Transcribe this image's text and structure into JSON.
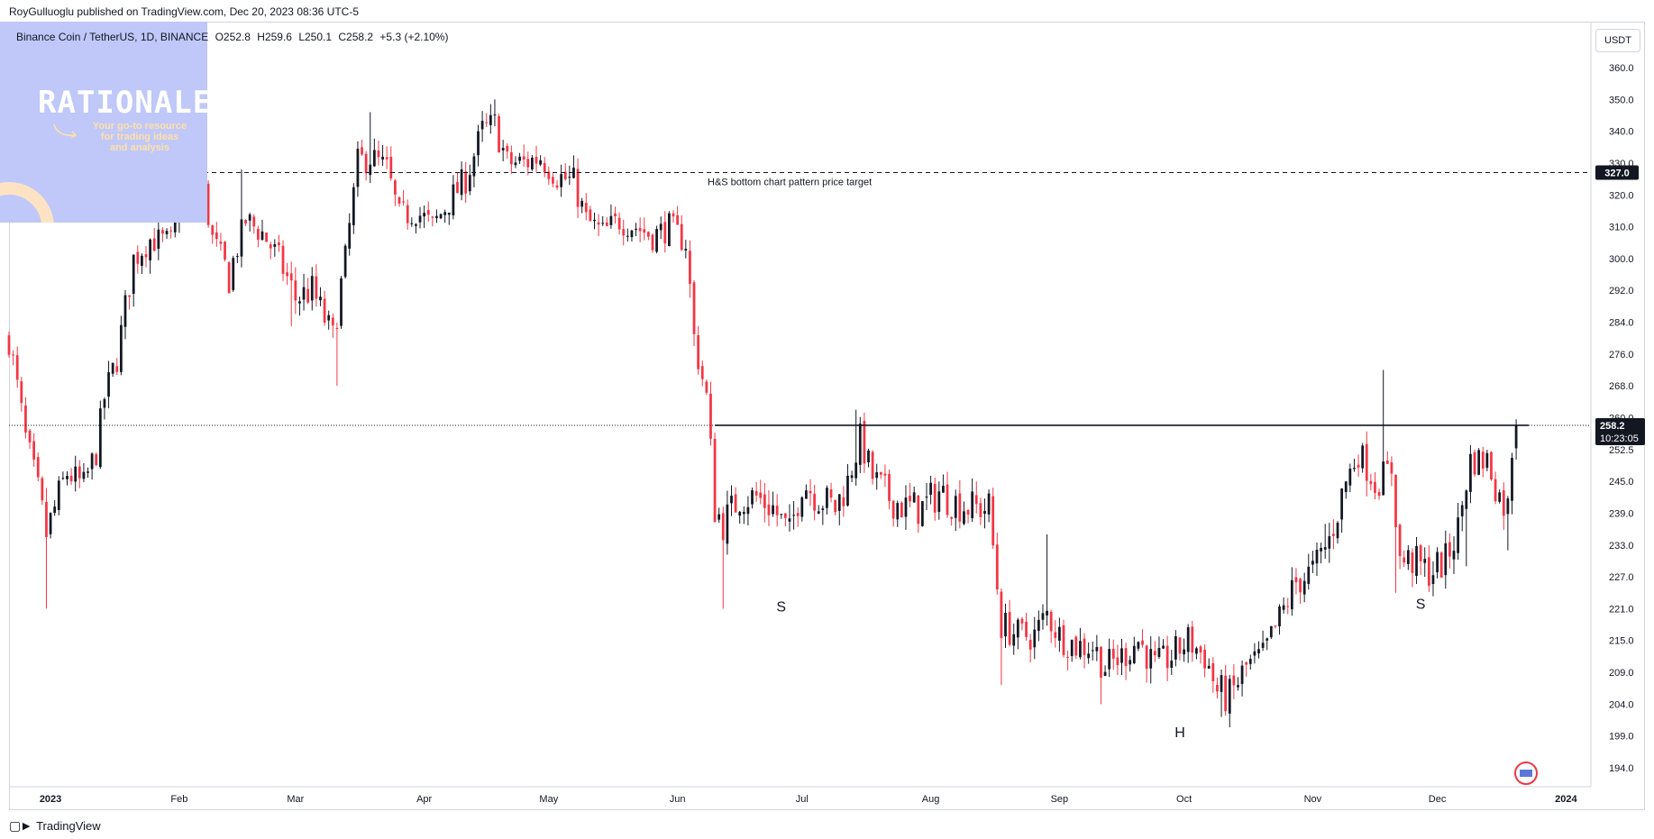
{
  "header": {
    "publisher": "RoyGulluoglu published on TradingView.com, Dec 20, 2023 08:36 UTC-5"
  },
  "symbol": {
    "name": "Binance Coin / TetherUS, 1D, BINANCE",
    "open": "O252.8",
    "high": "H259.6",
    "low": "L250.1",
    "close": "C258.2",
    "change": "+5.3 (+2.10%)"
  },
  "watermark": {
    "title": "RATIONALE",
    "tagline_1": "Your go-to resource",
    "tagline_2": "for trading ideas",
    "tagline_3": "and analysis"
  },
  "currency_button": "USDT",
  "footer": {
    "brand": "TradingView"
  },
  "colors": {
    "up": "#131722",
    "down": "#f23645",
    "target_line": "#131722",
    "neckline": "#131722"
  },
  "chart_data": {
    "type": "candlestick",
    "symbol": "BNBUSDT",
    "interval": "1D",
    "x_ticks": [
      "2023",
      "Feb",
      "Mar",
      "Apr",
      "May",
      "Jun",
      "Jul",
      "Aug",
      "Sep",
      "Oct",
      "Nov",
      "Dec",
      "2024"
    ],
    "y_ticks": [
      194.0,
      199.0,
      204.0,
      209.0,
      215.0,
      221.0,
      227.0,
      233.0,
      239.0,
      245.0,
      252.5,
      260.0,
      268.0,
      276.0,
      284.0,
      292.0,
      300.0,
      310.0,
      320.0,
      330.0,
      340.0,
      350.0,
      360.0
    ],
    "y_range": [
      190,
      366
    ],
    "x_range": [
      "2022-12-22",
      "2024-01-07"
    ],
    "last_price": {
      "value": 258.2,
      "label": "258.2",
      "countdown": "10:23:05"
    },
    "target": {
      "value": 327.0,
      "label": "327.0",
      "text": "H&S bottom chart pattern price target"
    },
    "neckline": {
      "value": 258.2,
      "from": "2023-06-10",
      "to": "2023-12-23"
    },
    "pattern_labels": [
      {
        "text": "S",
        "date": "2023-06-26",
        "price": 220.5
      },
      {
        "text": "H",
        "date": "2023-09-30",
        "price": 198.8
      },
      {
        "text": "S",
        "date": "2023-11-27",
        "price": 221.0
      }
    ],
    "anchors": [
      [
        "2022-12-22",
        280
      ],
      [
        "2022-12-26",
        255
      ],
      [
        "2022-12-31",
        235
      ],
      [
        "2023-01-05",
        247
      ],
      [
        "2023-01-09",
        244
      ],
      [
        "2023-01-12",
        252
      ],
      [
        "2023-01-14",
        265
      ],
      [
        "2023-01-17",
        275
      ],
      [
        "2023-01-21",
        300
      ],
      [
        "2023-01-25",
        306
      ],
      [
        "2023-01-30",
        305
      ],
      [
        "2023-02-02",
        320
      ],
      [
        "2023-02-06",
        328
      ],
      [
        "2023-02-09",
        306
      ],
      [
        "2023-02-13",
        295
      ],
      [
        "2023-02-17",
        312
      ],
      [
        "2023-02-21",
        308
      ],
      [
        "2023-02-25",
        300
      ],
      [
        "2023-03-01",
        290
      ],
      [
        "2023-03-05",
        292
      ],
      [
        "2023-03-10",
        280
      ],
      [
        "2023-03-13",
        300
      ],
      [
        "2023-03-16",
        330
      ],
      [
        "2023-03-19",
        332
      ],
      [
        "2023-03-23",
        328
      ],
      [
        "2023-03-26",
        313
      ],
      [
        "2023-03-30",
        315
      ],
      [
        "2023-04-03",
        310
      ],
      [
        "2023-04-07",
        318
      ],
      [
        "2023-04-11",
        325
      ],
      [
        "2023-04-15",
        340
      ],
      [
        "2023-04-18",
        342
      ],
      [
        "2023-04-21",
        330
      ],
      [
        "2023-04-25",
        330
      ],
      [
        "2023-04-29",
        332
      ],
      [
        "2023-05-03",
        326
      ],
      [
        "2023-05-07",
        324
      ],
      [
        "2023-05-10",
        312
      ],
      [
        "2023-05-14",
        308
      ],
      [
        "2023-05-18",
        312
      ],
      [
        "2023-05-22",
        310
      ],
      [
        "2023-05-26",
        307
      ],
      [
        "2023-05-30",
        310
      ],
      [
        "2023-06-03",
        305
      ],
      [
        "2023-06-05",
        280
      ],
      [
        "2023-06-08",
        265
      ],
      [
        "2023-06-10",
        240
      ],
      [
        "2023-06-12",
        237
      ],
      [
        "2023-06-16",
        242
      ],
      [
        "2023-06-20",
        242
      ],
      [
        "2023-06-24",
        240
      ],
      [
        "2023-06-28",
        235
      ],
      [
        "2023-07-01",
        245
      ],
      [
        "2023-07-05",
        242
      ],
      [
        "2023-07-09",
        240
      ],
      [
        "2023-07-12",
        245
      ],
      [
        "2023-07-15",
        255
      ],
      [
        "2023-07-18",
        246
      ],
      [
        "2023-07-22",
        242
      ],
      [
        "2023-07-26",
        240
      ],
      [
        "2023-07-30",
        240
      ],
      [
        "2023-08-03",
        243
      ],
      [
        "2023-08-07",
        241
      ],
      [
        "2023-08-11",
        240
      ],
      [
        "2023-08-15",
        240
      ],
      [
        "2023-08-18",
        218
      ],
      [
        "2023-08-22",
        216
      ],
      [
        "2023-08-26",
        216
      ],
      [
        "2023-08-29",
        220
      ],
      [
        "2023-09-01",
        216
      ],
      [
        "2023-09-05",
        214
      ],
      [
        "2023-09-09",
        214
      ],
      [
        "2023-09-12",
        210
      ],
      [
        "2023-09-16",
        212
      ],
      [
        "2023-09-20",
        215
      ],
      [
        "2023-09-24",
        210
      ],
      [
        "2023-09-28",
        212
      ],
      [
        "2023-10-02",
        215
      ],
      [
        "2023-10-06",
        212
      ],
      [
        "2023-10-09",
        206
      ],
      [
        "2023-10-12",
        205
      ],
      [
        "2023-10-16",
        210
      ],
      [
        "2023-10-20",
        212
      ],
      [
        "2023-10-24",
        219
      ],
      [
        "2023-10-28",
        226
      ],
      [
        "2023-11-01",
        228
      ],
      [
        "2023-11-05",
        234
      ],
      [
        "2023-11-09",
        245
      ],
      [
        "2023-11-12",
        252
      ],
      [
        "2023-11-16",
        245
      ],
      [
        "2023-11-20",
        248
      ],
      [
        "2023-11-22",
        230
      ],
      [
        "2023-11-25",
        230
      ],
      [
        "2023-11-29",
        228
      ],
      [
        "2023-12-03",
        230
      ],
      [
        "2023-12-06",
        236
      ],
      [
        "2023-12-09",
        250
      ],
      [
        "2023-12-13",
        250
      ],
      [
        "2023-12-16",
        242
      ],
      [
        "2023-12-18",
        240
      ],
      [
        "2023-12-19",
        252.8
      ],
      [
        "2023-12-20",
        258.2
      ]
    ],
    "spikes": [
      [
        "2022-12-31",
        221,
        "low"
      ],
      [
        "2023-02-28",
        283,
        "low"
      ],
      [
        "2023-02-16",
        328,
        "high"
      ],
      [
        "2023-03-11",
        268,
        "low"
      ],
      [
        "2023-03-19",
        346,
        "high"
      ],
      [
        "2023-04-18",
        350,
        "high"
      ],
      [
        "2023-06-12",
        221,
        "low"
      ],
      [
        "2023-07-14",
        262,
        "high"
      ],
      [
        "2023-08-18",
        207,
        "low"
      ],
      [
        "2023-08-29",
        235,
        "high"
      ],
      [
        "2023-09-11",
        204,
        "low"
      ],
      [
        "2023-10-10",
        202,
        "low"
      ],
      [
        "2023-11-04",
        237,
        "high"
      ],
      [
        "2023-11-18",
        272,
        "high"
      ],
      [
        "2023-11-21",
        224,
        "low"
      ],
      [
        "2023-12-08",
        229,
        "low"
      ],
      [
        "2023-12-18",
        232,
        "low"
      ]
    ]
  }
}
